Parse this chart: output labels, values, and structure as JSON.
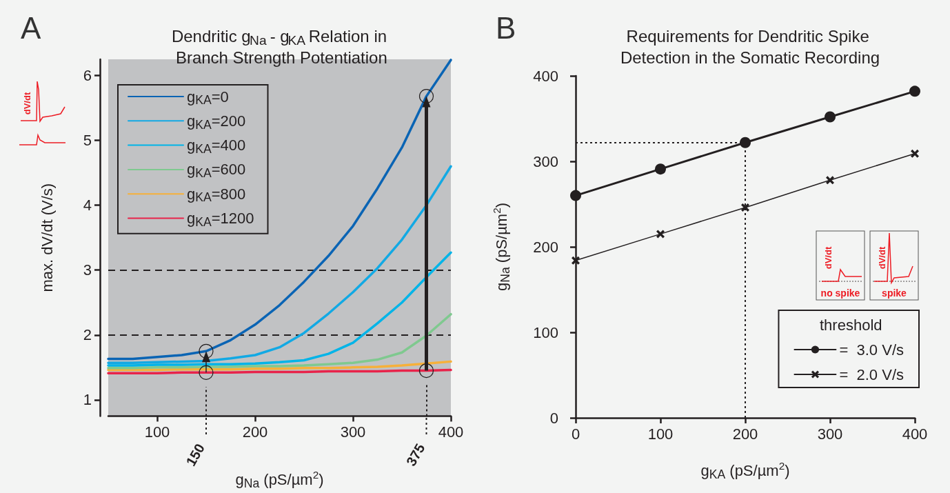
{
  "chart_data": [
    {
      "type": "line",
      "title": "Dendritic g$_{Na}$ - g$_{KA}$ Relation in Branch Strength Potentiation",
      "xlabel": "g$_{Na}$ (pS/µm$^{2}$)",
      "ylabel": "max. dV/dt (V/s)",
      "x": [
        50,
        75,
        100,
        125,
        150,
        175,
        200,
        225,
        250,
        275,
        300,
        325,
        350,
        375,
        400
      ],
      "series": [
        {
          "name": "g$_{KA}$=0",
          "color": "#0a64b4",
          "values": [
            1.63,
            1.63,
            1.66,
            1.69,
            1.75,
            1.92,
            2.16,
            2.46,
            2.82,
            3.22,
            3.68,
            4.26,
            4.89,
            5.68,
            6.24
          ]
        },
        {
          "name": "g$_{KA}$=200",
          "color": "#12a9e4",
          "values": [
            1.57,
            1.57,
            1.58,
            1.59,
            1.6,
            1.64,
            1.69,
            1.81,
            2.03,
            2.33,
            2.66,
            3.03,
            3.47,
            4.0,
            4.6
          ]
        },
        {
          "name": "g$_{KA}$=400",
          "color": "#00b4e8",
          "values": [
            1.53,
            1.53,
            1.54,
            1.54,
            1.55,
            1.55,
            1.56,
            1.58,
            1.61,
            1.71,
            1.88,
            2.18,
            2.5,
            2.89,
            3.27
          ]
        },
        {
          "name": "g$_{KA}$=600",
          "color": "#7fc98f",
          "values": [
            1.49,
            1.49,
            1.5,
            1.5,
            1.51,
            1.51,
            1.52,
            1.52,
            1.53,
            1.55,
            1.57,
            1.62,
            1.73,
            1.99,
            2.32
          ]
        },
        {
          "name": "g$_{KA}$=800",
          "color": "#f6b03a",
          "values": [
            1.46,
            1.46,
            1.46,
            1.47,
            1.47,
            1.47,
            1.48,
            1.48,
            1.49,
            1.49,
            1.5,
            1.51,
            1.53,
            1.56,
            1.59
          ]
        },
        {
          "name": "g$_{KA}$=1200",
          "color": "#e8234a",
          "values": [
            1.41,
            1.41,
            1.41,
            1.42,
            1.42,
            1.42,
            1.43,
            1.43,
            1.43,
            1.44,
            1.44,
            1.44,
            1.45,
            1.45,
            1.46
          ]
        }
      ],
      "xlim": [
        50,
        400
      ],
      "xticks": [
        100,
        200,
        300,
        400
      ],
      "ylim": [
        0.75,
        6.25
      ],
      "yticks": [
        1,
        2,
        3,
        4,
        5,
        6
      ],
      "marker": "none",
      "line_style": "solid",
      "legend": "top left",
      "ref_lines": [
        {
          "axis": "y",
          "value": 3,
          "line_style": "dashed"
        },
        {
          "axis": "y",
          "value": 2,
          "line_style": "dashed"
        },
        {
          "axis": "x",
          "value": 150,
          "label": "150",
          "line_style": "dotted"
        },
        {
          "axis": "x",
          "value": 375,
          "label": "375",
          "line_style": "dotted"
        }
      ],
      "annotations": [
        "A",
        "dV/dt"
      ]
    },
    {
      "type": "line",
      "title": "Requirements for Dendritic Spike Detection in the Somatic Recording",
      "xlabel": "g$_{KA}$ (pS/µm$^{2}$)",
      "ylabel": "g$_{Na}$ (pS/µm$^{2}$)",
      "x": [
        0,
        100,
        200,
        300,
        400
      ],
      "series": [
        {
          "name": "=  3.0 V/s",
          "color": "#231f20",
          "marker": "circle",
          "values": [
            260,
            291,
            322,
            352,
            382
          ]
        },
        {
          "name": "=  2.0 V/s",
          "color": "#231f20",
          "marker": "cross",
          "values": [
            184,
            215,
            246,
            278,
            309
          ]
        }
      ],
      "xlim": [
        0,
        400
      ],
      "xticks": [
        0,
        100,
        200,
        300,
        400
      ],
      "ylim": [
        0,
        400
      ],
      "yticks": [
        0,
        100,
        200,
        300,
        400
      ],
      "line_style": "solid",
      "legend": "bottom right",
      "legend_title": "threshold",
      "ref_lines": [
        {
          "axis": "x",
          "value": 200,
          "line_style": "dotted"
        },
        {
          "axis": "y",
          "value": 322,
          "line_style": "dotted"
        }
      ],
      "annotations": [
        "B",
        "dV/dt",
        "no spike",
        "dV/dt",
        "spike"
      ]
    }
  ]
}
